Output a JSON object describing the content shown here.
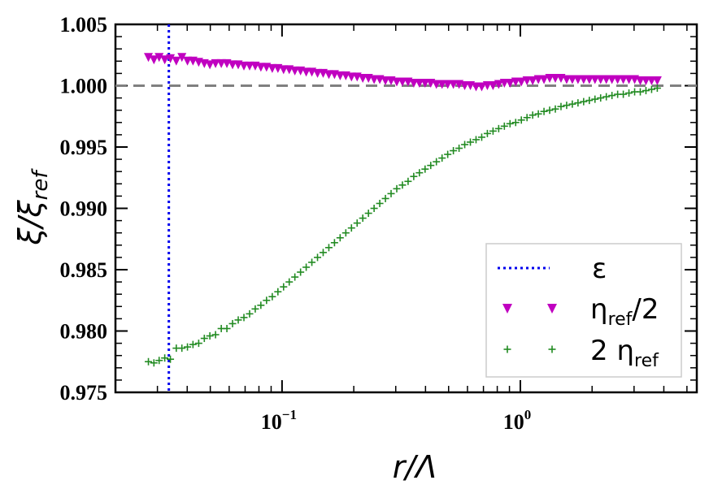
{
  "chart_data": {
    "type": "scatter",
    "xscale": "log",
    "xlim": [
      0.02,
      5.5
    ],
    "ylim": [
      0.975,
      1.005
    ],
    "yticks": [
      "0.975",
      "0.980",
      "0.985",
      "0.990",
      "0.995",
      "1.000",
      "1.005"
    ],
    "ytick_values": [
      0.975,
      0.98,
      0.985,
      0.99,
      0.995,
      1.0,
      1.005
    ],
    "xticks": [
      {
        "base": "10",
        "exp": "−1",
        "value": 0.1
      },
      {
        "base": "10",
        "exp": "0",
        "value": 1
      }
    ],
    "xlabel_main": "r/Λ",
    "ylabel_main": "ξ/ξ",
    "ylabel_sub": "ref",
    "reference_line": {
      "y": 1.0,
      "style": "dashed",
      "color": "#808080"
    },
    "vertical_line": {
      "x": 0.0335,
      "style": "dotted",
      "color": "#0000ee"
    },
    "legend": {
      "position": "bottom-right",
      "entries": [
        {
          "label": "ε",
          "sub": "",
          "suffix": "",
          "prefix": "",
          "marker": "dotted-line",
          "color": "#0000ee"
        },
        {
          "label": "η",
          "sub": "ref",
          "suffix": "/2",
          "prefix": "",
          "marker": "triangle-down",
          "color": "#c000c0"
        },
        {
          "label": "η",
          "sub": "ref",
          "suffix": "",
          "prefix": "2 ",
          "marker": "plus",
          "color": "#228b22"
        }
      ]
    },
    "series": [
      {
        "name": "η_ref/2",
        "marker": "triangle-down",
        "color": "#c000c0",
        "points": [
          [
            0.0275,
            1.0023
          ],
          [
            0.029,
            1.0021
          ],
          [
            0.0305,
            1.0023
          ],
          [
            0.0322,
            1.0021
          ],
          [
            0.034,
            1.0022
          ],
          [
            0.036,
            1.002
          ],
          [
            0.038,
            1.0023
          ],
          [
            0.0401,
            1.002
          ],
          [
            0.0423,
            1.002
          ],
          [
            0.0447,
            1.0019
          ],
          [
            0.0472,
            1.0018
          ],
          [
            0.0498,
            1.0017
          ],
          [
            0.0526,
            1.0018
          ],
          [
            0.0556,
            1.0018
          ],
          [
            0.0587,
            1.0018
          ],
          [
            0.062,
            1.0017
          ],
          [
            0.0655,
            1.0017
          ],
          [
            0.0692,
            1.0016
          ],
          [
            0.0731,
            1.0016
          ],
          [
            0.0772,
            1.0016
          ],
          [
            0.0815,
            1.0015
          ],
          [
            0.0861,
            1.0015
          ],
          [
            0.091,
            1.0014
          ],
          [
            0.0961,
            1.0014
          ],
          [
            0.1015,
            1.0013
          ],
          [
            0.1072,
            1.0013
          ],
          [
            0.1132,
            1.0012
          ],
          [
            0.1196,
            1.0012
          ],
          [
            0.1263,
            1.0011
          ],
          [
            0.1334,
            1.0011
          ],
          [
            0.1409,
            1.001
          ],
          [
            0.1488,
            1.001
          ],
          [
            0.1572,
            1.0009
          ],
          [
            0.166,
            1.0009
          ],
          [
            0.1753,
            1.0008
          ],
          [
            0.1852,
            1.0008
          ],
          [
            0.1956,
            1.0007
          ],
          [
            0.2066,
            1.0007
          ],
          [
            0.2182,
            1.0006
          ],
          [
            0.2305,
            1.0006
          ],
          [
            0.2434,
            1.0005
          ],
          [
            0.2571,
            1.0005
          ],
          [
            0.2716,
            1.0004
          ],
          [
            0.2868,
            1.0004
          ],
          [
            0.303,
            1.0003
          ],
          [
            0.32,
            1.0003
          ],
          [
            0.338,
            1.0003
          ],
          [
            0.357,
            1.0002
          ],
          [
            0.3771,
            1.0002
          ],
          [
            0.3983,
            1.0002
          ],
          [
            0.4207,
            1.0002
          ],
          [
            0.4443,
            1.0001
          ],
          [
            0.4693,
            1.0001
          ],
          [
            0.4957,
            1.0001
          ],
          [
            0.5236,
            1.0001
          ],
          [
            0.5531,
            1.0001
          ],
          [
            0.5842,
            1.0
          ],
          [
            0.617,
            1.0
          ],
          [
            0.6517,
            0.9999
          ],
          [
            0.6884,
            0.9999
          ],
          [
            0.7271,
            1.0
          ],
          [
            0.768,
            1.0
          ],
          [
            0.8112,
            1.0001
          ],
          [
            0.8568,
            1.0002
          ],
          [
            0.905,
            1.0002
          ],
          [
            0.9559,
            1.0003
          ],
          [
            1.0097,
            1.0003
          ],
          [
            1.0665,
            1.0004
          ],
          [
            1.1265,
            1.0004
          ],
          [
            1.1898,
            1.0005
          ],
          [
            1.2567,
            1.0005
          ],
          [
            1.3274,
            1.0006
          ],
          [
            1.4021,
            1.0006
          ],
          [
            1.4809,
            1.0006
          ],
          [
            1.5642,
            1.0005
          ],
          [
            1.6522,
            1.0005
          ],
          [
            1.7451,
            1.0005
          ],
          [
            1.8433,
            1.0005
          ],
          [
            1.947,
            1.0005
          ],
          [
            2.0565,
            1.0005
          ],
          [
            2.1722,
            1.0005
          ],
          [
            2.2944,
            1.0005
          ],
          [
            2.4234,
            1.0005
          ],
          [
            2.5597,
            1.0005
          ],
          [
            2.7037,
            1.0005
          ],
          [
            2.8558,
            1.0005
          ],
          [
            3.0164,
            1.0005
          ],
          [
            3.1861,
            1.0004
          ],
          [
            3.3653,
            1.0004
          ],
          [
            3.5546,
            1.0004
          ],
          [
            3.7545,
            1.0004
          ]
        ]
      },
      {
        "name": "2 η_ref",
        "marker": "plus",
        "color": "#228b22",
        "points": [
          [
            0.0275,
            0.9775
          ],
          [
            0.029,
            0.9774
          ],
          [
            0.0305,
            0.9776
          ],
          [
            0.0322,
            0.9778
          ],
          [
            0.034,
            0.9777
          ],
          [
            0.036,
            0.9786
          ],
          [
            0.038,
            0.9786
          ],
          [
            0.0401,
            0.9787
          ],
          [
            0.0423,
            0.9789
          ],
          [
            0.0447,
            0.979
          ],
          [
            0.0472,
            0.9794
          ],
          [
            0.0498,
            0.9796
          ],
          [
            0.0526,
            0.9797
          ],
          [
            0.0556,
            0.9802
          ],
          [
            0.0587,
            0.9802
          ],
          [
            0.062,
            0.9806
          ],
          [
            0.0655,
            0.9809
          ],
          [
            0.0692,
            0.9811
          ],
          [
            0.0731,
            0.9814
          ],
          [
            0.0772,
            0.9818
          ],
          [
            0.0815,
            0.9821
          ],
          [
            0.0861,
            0.9825
          ],
          [
            0.091,
            0.9828
          ],
          [
            0.0961,
            0.9832
          ],
          [
            0.1015,
            0.9836
          ],
          [
            0.1072,
            0.984
          ],
          [
            0.1132,
            0.9844
          ],
          [
            0.1196,
            0.9848
          ],
          [
            0.1263,
            0.9852
          ],
          [
            0.1334,
            0.9856
          ],
          [
            0.1409,
            0.986
          ],
          [
            0.1488,
            0.9864
          ],
          [
            0.1572,
            0.9868
          ],
          [
            0.166,
            0.9872
          ],
          [
            0.1753,
            0.9876
          ],
          [
            0.1852,
            0.988
          ],
          [
            0.1956,
            0.9884
          ],
          [
            0.2066,
            0.9888
          ],
          [
            0.2182,
            0.9892
          ],
          [
            0.2305,
            0.9896
          ],
          [
            0.2434,
            0.99
          ],
          [
            0.2571,
            0.9904
          ],
          [
            0.2716,
            0.9908
          ],
          [
            0.2868,
            0.9912
          ],
          [
            0.303,
            0.9916
          ],
          [
            0.32,
            0.9919
          ],
          [
            0.338,
            0.9922
          ],
          [
            0.357,
            0.9926
          ],
          [
            0.3771,
            0.9929
          ],
          [
            0.3983,
            0.9932
          ],
          [
            0.4207,
            0.9935
          ],
          [
            0.4443,
            0.9938
          ],
          [
            0.4693,
            0.9941
          ],
          [
            0.4957,
            0.9944
          ],
          [
            0.5236,
            0.9947
          ],
          [
            0.5531,
            0.9949
          ],
          [
            0.5842,
            0.9952
          ],
          [
            0.617,
            0.9954
          ],
          [
            0.6517,
            0.9956
          ],
          [
            0.6884,
            0.9958
          ],
          [
            0.7271,
            0.9961
          ],
          [
            0.768,
            0.9963
          ],
          [
            0.8112,
            0.9965
          ],
          [
            0.8568,
            0.9967
          ],
          [
            0.905,
            0.9969
          ],
          [
            0.9559,
            0.997
          ],
          [
            1.0097,
            0.9972
          ],
          [
            1.0665,
            0.9974
          ],
          [
            1.1265,
            0.9976
          ],
          [
            1.1898,
            0.9977
          ],
          [
            1.2567,
            0.9979
          ],
          [
            1.3274,
            0.998
          ],
          [
            1.4021,
            0.9981
          ],
          [
            1.4809,
            0.9983
          ],
          [
            1.5642,
            0.9984
          ],
          [
            1.6522,
            0.9985
          ],
          [
            1.7451,
            0.9986
          ],
          [
            1.8433,
            0.9987
          ],
          [
            1.947,
            0.9988
          ],
          [
            2.0565,
            0.9989
          ],
          [
            2.1722,
            0.999
          ],
          [
            2.2944,
            0.9991
          ],
          [
            2.4234,
            0.9992
          ],
          [
            2.5597,
            0.9993
          ],
          [
            2.7037,
            0.9993
          ],
          [
            2.8558,
            0.9994
          ],
          [
            3.0164,
            0.9995
          ],
          [
            3.1861,
            0.9995
          ],
          [
            3.3653,
            0.9996
          ],
          [
            3.5546,
            0.9997
          ],
          [
            3.7545,
            0.9998
          ]
        ]
      }
    ]
  }
}
